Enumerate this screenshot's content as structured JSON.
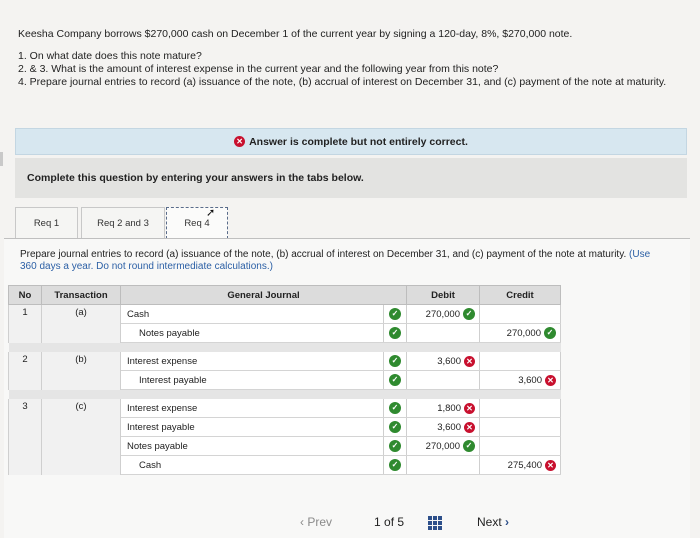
{
  "problem": {
    "intro": "Keesha Company borrows $270,000 cash on December 1 of the current year by signing a 120-day, 8%, $270,000 note.",
    "q1": "1. On what date does this note mature?",
    "q23": "2. & 3. What is the amount of interest expense in the current year and the following year from this note?",
    "q4": "4. Prepare journal entries to record (a) issuance of the note, (b) accrual of interest on December 31, and (c) payment of the note at maturity."
  },
  "status": {
    "text": "Answer is complete but not entirely correct."
  },
  "instruction": "Complete this question by entering your answers in the tabs below.",
  "tabs": [
    {
      "label": "Req 1"
    },
    {
      "label": "Req 2 and 3"
    },
    {
      "label": "Req 4"
    }
  ],
  "req4": {
    "text": "Prepare journal entries to record (a) issuance of the note, (b) accrual of interest on December 31, and (c) payment of the note at maturity.",
    "note": "(Use 360 days a year. Do not round intermediate calculations.)"
  },
  "journal": {
    "headers": {
      "no": "No",
      "transaction": "Transaction",
      "account": "General Journal",
      "debit": "Debit",
      "credit": "Credit"
    },
    "entries": [
      {
        "no": "1",
        "transaction": "(a)",
        "lines": [
          {
            "account": "Cash",
            "debit": "270,000",
            "debit_status": "correct",
            "credit": ""
          },
          {
            "account": "Notes payable",
            "debit": "",
            "credit": "270,000",
            "credit_status": "correct"
          }
        ]
      },
      {
        "no": "2",
        "transaction": "(b)",
        "lines": [
          {
            "account": "Interest expense",
            "debit": "3,600",
            "debit_status": "incorrect",
            "credit": ""
          },
          {
            "account": "Interest payable",
            "debit": "",
            "credit": "3,600",
            "credit_status": "incorrect"
          }
        ]
      },
      {
        "no": "3",
        "transaction": "(c)",
        "lines": [
          {
            "account": "Interest expense",
            "debit": "1,800",
            "debit_status": "incorrect",
            "credit": ""
          },
          {
            "account": "Interest payable",
            "debit": "3,600",
            "debit_status": "incorrect",
            "credit": ""
          },
          {
            "account": "Notes payable",
            "debit": "270,000",
            "debit_status": "correct",
            "credit": ""
          },
          {
            "account": "Cash",
            "debit": "",
            "credit": "275,400",
            "credit_status": "incorrect"
          }
        ]
      }
    ]
  },
  "nav": {
    "prev_label": "Prev",
    "page_current": "1",
    "page_of": "of",
    "page_total": "5",
    "next_label": "Next"
  },
  "colors": {
    "correct": "#2f8a2f",
    "incorrect": "#c8102e",
    "accent": "#2d4f8a"
  }
}
